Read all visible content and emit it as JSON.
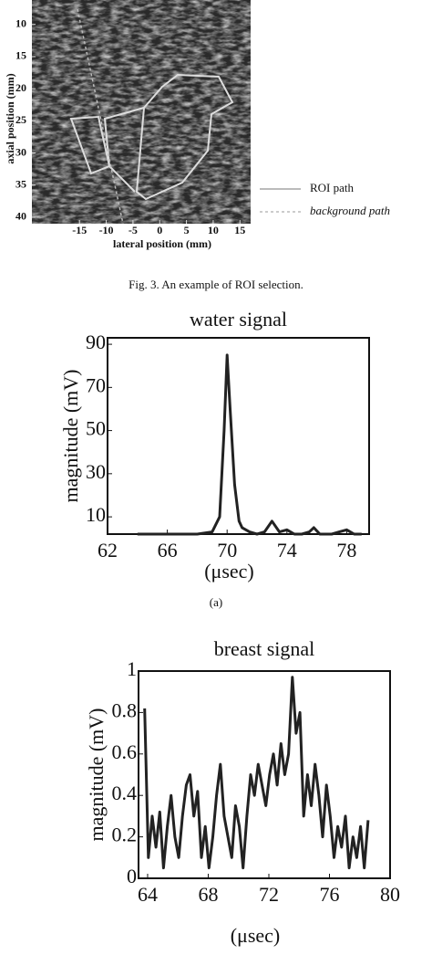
{
  "figure3": {
    "ylabel": "axial position (mm)",
    "xlabel": "lateral position (mm)",
    "ylim": [
      6.2,
      41
    ],
    "yticks": [
      10,
      15,
      20,
      25,
      30,
      35,
      40
    ],
    "xlim": [
      -23.9,
      17
    ],
    "xticks": [
      -15,
      -10,
      -5,
      0,
      5,
      10,
      15
    ],
    "legend": [
      "ROI path",
      "background path"
    ],
    "caption": "Fig. 3. An example of ROI selection."
  },
  "chart_data": [
    {
      "type": "line",
      "title": "water signal",
      "xlabel": "(μsec)",
      "ylabel": "magnitude (mV)",
      "caption": "(a)",
      "x": [
        64,
        66,
        68,
        69,
        69.5,
        69.8,
        70,
        70.2,
        70.5,
        70.8,
        71,
        71.5,
        72,
        72.5,
        73,
        73.5,
        74,
        74.5,
        75,
        75.5,
        75.8,
        76.2,
        77,
        77.5,
        78,
        78.5,
        79
      ],
      "values": [
        2,
        2,
        2,
        3,
        10,
        50,
        85,
        60,
        25,
        8,
        5,
        3,
        2,
        3,
        8,
        3,
        4,
        2,
        2,
        3,
        5,
        2,
        2,
        3,
        4,
        2,
        2
      ],
      "color": "#222",
      "xlim": [
        62,
        79.5
      ],
      "xticks": [
        62,
        66,
        70,
        74,
        78
      ],
      "ylim": [
        2,
        93
      ],
      "yticks": [
        10,
        30,
        50,
        70,
        90
      ]
    },
    {
      "type": "line",
      "title": "breast signal",
      "xlabel": "(μsec)",
      "ylabel": "magnitude (mV)",
      "x": [
        63.8,
        64.05,
        64.3,
        64.55,
        64.8,
        65.05,
        65.3,
        65.55,
        65.8,
        66.05,
        66.3,
        66.55,
        66.8,
        67.05,
        67.3,
        67.55,
        67.8,
        68.05,
        68.3,
        68.55,
        68.8,
        69.05,
        69.3,
        69.55,
        69.8,
        70.05,
        70.3,
        70.55,
        70.8,
        71.05,
        71.3,
        71.55,
        71.8,
        72.05,
        72.3,
        72.55,
        72.8,
        73.05,
        73.3,
        73.55,
        73.8,
        74.05,
        74.3,
        74.55,
        74.8,
        75.05,
        75.3,
        75.55,
        75.8,
        76.05,
        76.3,
        76.55,
        76.8,
        77.05,
        77.3,
        77.55,
        77.8,
        78.05,
        78.3,
        78.55
      ],
      "values": [
        0.82,
        0.1,
        0.3,
        0.15,
        0.32,
        0.05,
        0.25,
        0.4,
        0.2,
        0.1,
        0.3,
        0.45,
        0.5,
        0.3,
        0.42,
        0.1,
        0.25,
        0.05,
        0.2,
        0.4,
        0.55,
        0.3,
        0.2,
        0.1,
        0.35,
        0.25,
        0.05,
        0.3,
        0.5,
        0.4,
        0.55,
        0.45,
        0.35,
        0.5,
        0.6,
        0.45,
        0.65,
        0.5,
        0.6,
        0.97,
        0.7,
        0.8,
        0.3,
        0.5,
        0.35,
        0.55,
        0.4,
        0.2,
        0.45,
        0.3,
        0.1,
        0.25,
        0.15,
        0.3,
        0.05,
        0.2,
        0.1,
        0.25,
        0.05,
        0.28
      ],
      "color": "#222",
      "xlim": [
        63.4,
        80
      ],
      "xticks": [
        64,
        68,
        72,
        76,
        80
      ],
      "ylim": [
        0,
        1
      ],
      "yticks": [
        0,
        0.2,
        0.4,
        0.6,
        0.8,
        1
      ]
    }
  ]
}
